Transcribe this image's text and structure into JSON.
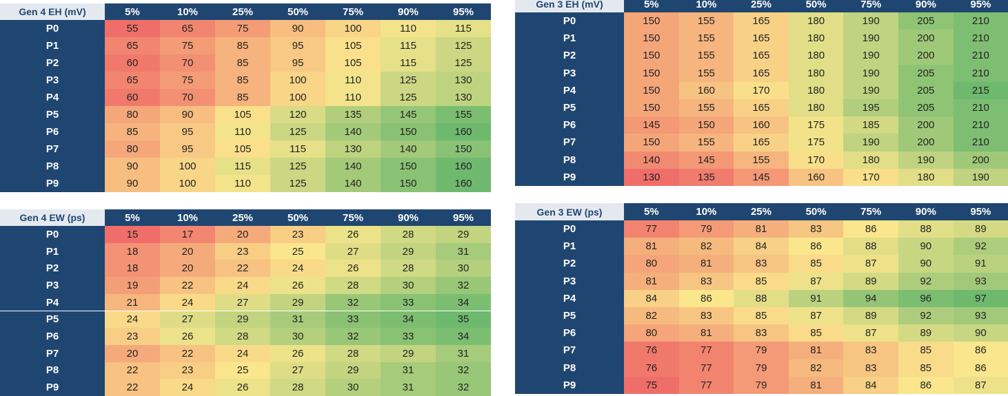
{
  "tables": [
    {
      "title": "Gen 4 EH (mV)",
      "columns": [
        "5%",
        "10%",
        "25%",
        "50%",
        "75%",
        "90%",
        "95%"
      ],
      "rows": [
        {
          "label": "P0",
          "values": [
            55,
            65,
            75,
            90,
            100,
            110,
            115
          ]
        },
        {
          "label": "P1",
          "values": [
            65,
            75,
            85,
            95,
            105,
            115,
            125
          ]
        },
        {
          "label": "P2",
          "values": [
            60,
            70,
            85,
            95,
            105,
            115,
            125
          ]
        },
        {
          "label": "P3",
          "values": [
            65,
            75,
            85,
            100,
            110,
            125,
            130
          ]
        },
        {
          "label": "P4",
          "values": [
            60,
            70,
            85,
            100,
            110,
            125,
            130
          ]
        },
        {
          "label": "P5",
          "values": [
            80,
            90,
            105,
            120,
            135,
            145,
            155
          ]
        },
        {
          "label": "P6",
          "values": [
            85,
            95,
            110,
            125,
            140,
            150,
            160
          ]
        },
        {
          "label": "P7",
          "values": [
            80,
            95,
            105,
            115,
            130,
            140,
            150
          ]
        },
        {
          "label": "P8",
          "values": [
            90,
            100,
            115,
            125,
            140,
            150,
            160
          ]
        },
        {
          "label": "P9",
          "values": [
            90,
            100,
            110,
            125,
            140,
            150,
            160
          ]
        }
      ]
    },
    {
      "title": "Gen 3 EH (mV)",
      "columns": [
        "5%",
        "10%",
        "25%",
        "50%",
        "75%",
        "90%",
        "95%"
      ],
      "rows": [
        {
          "label": "P0",
          "values": [
            150,
            155,
            165,
            180,
            190,
            205,
            210
          ]
        },
        {
          "label": "P1",
          "values": [
            150,
            155,
            165,
            180,
            190,
            200,
            210
          ]
        },
        {
          "label": "P2",
          "values": [
            150,
            155,
            165,
            180,
            190,
            200,
            210
          ]
        },
        {
          "label": "P3",
          "values": [
            150,
            155,
            165,
            180,
            190,
            205,
            210
          ]
        },
        {
          "label": "P4",
          "values": [
            150,
            160,
            170,
            180,
            190,
            205,
            215
          ]
        },
        {
          "label": "P5",
          "values": [
            150,
            155,
            165,
            180,
            195,
            205,
            210
          ]
        },
        {
          "label": "P6",
          "values": [
            145,
            150,
            160,
            175,
            185,
            200,
            210
          ]
        },
        {
          "label": "P7",
          "values": [
            150,
            155,
            165,
            175,
            190,
            200,
            210
          ]
        },
        {
          "label": "P8",
          "values": [
            140,
            145,
            155,
            170,
            180,
            190,
            200
          ]
        },
        {
          "label": "P9",
          "values": [
            130,
            135,
            145,
            160,
            170,
            180,
            190
          ]
        }
      ]
    },
    {
      "title": "Gen 4 EW (ps)",
      "columns": [
        "5%",
        "10%",
        "25%",
        "50%",
        "75%",
        "90%",
        "95%"
      ],
      "rows": [
        {
          "label": "P0",
          "values": [
            15,
            17,
            20,
            23,
            26,
            28,
            29
          ]
        },
        {
          "label": "P1",
          "values": [
            18,
            20,
            23,
            25,
            27,
            29,
            31
          ]
        },
        {
          "label": "P2",
          "values": [
            18,
            20,
            22,
            24,
            26,
            28,
            30
          ]
        },
        {
          "label": "P3",
          "values": [
            19,
            22,
            24,
            26,
            28,
            30,
            32
          ]
        },
        {
          "label": "P4",
          "values": [
            21,
            24,
            27,
            29,
            32,
            33,
            34
          ]
        },
        {
          "label": "P5",
          "values": [
            24,
            27,
            29,
            31,
            33,
            34,
            35
          ]
        },
        {
          "label": "P6",
          "values": [
            23,
            26,
            28,
            30,
            32,
            33,
            34
          ]
        },
        {
          "label": "P7",
          "values": [
            20,
            22,
            24,
            26,
            28,
            29,
            31
          ]
        },
        {
          "label": "P8",
          "values": [
            22,
            23,
            25,
            27,
            29,
            31,
            32
          ]
        },
        {
          "label": "P9",
          "values": [
            22,
            24,
            26,
            28,
            30,
            31,
            32
          ]
        }
      ]
    },
    {
      "title": "Gen 3 EW (ps)",
      "columns": [
        "5%",
        "10%",
        "25%",
        "50%",
        "75%",
        "90%",
        "95%"
      ],
      "rows": [
        {
          "label": "P0",
          "values": [
            77,
            79,
            81,
            83,
            86,
            88,
            89
          ]
        },
        {
          "label": "P1",
          "values": [
            81,
            82,
            84,
            86,
            88,
            90,
            92
          ]
        },
        {
          "label": "P2",
          "values": [
            80,
            81,
            83,
            85,
            87,
            90,
            91
          ]
        },
        {
          "label": "P3",
          "values": [
            81,
            83,
            85,
            87,
            89,
            92,
            93
          ]
        },
        {
          "label": "P4",
          "values": [
            84,
            86,
            88,
            91,
            94,
            96,
            97
          ]
        },
        {
          "label": "P5",
          "values": [
            82,
            83,
            85,
            87,
            89,
            92,
            93
          ]
        },
        {
          "label": "P6",
          "values": [
            80,
            81,
            83,
            85,
            87,
            89,
            90
          ]
        },
        {
          "label": "P7",
          "values": [
            76,
            77,
            79,
            81,
            83,
            85,
            86
          ]
        },
        {
          "label": "P8",
          "values": [
            76,
            77,
            79,
            82,
            83,
            85,
            86
          ]
        },
        {
          "label": "P9",
          "values": [
            75,
            77,
            79,
            81,
            84,
            86,
            87
          ]
        }
      ]
    }
  ]
}
